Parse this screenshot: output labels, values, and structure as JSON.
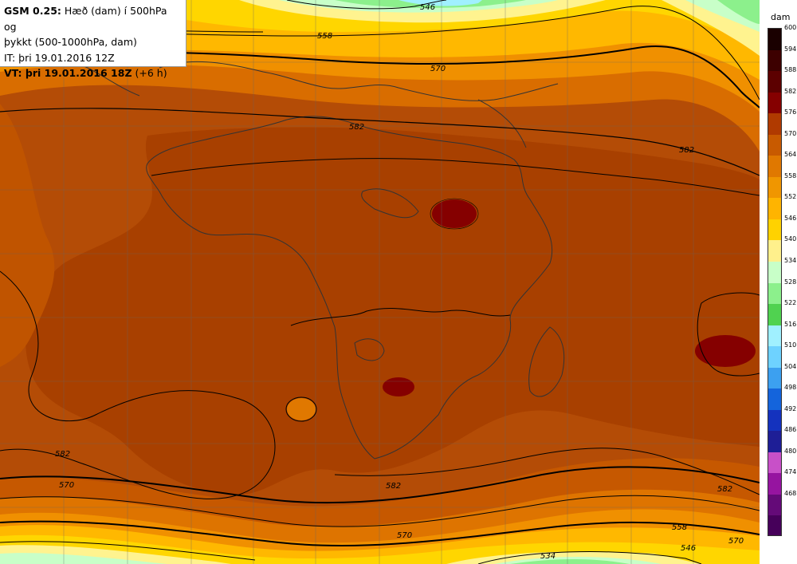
{
  "info": {
    "model_prefix": "GSM 0.25:",
    "line1_rest": "Hæð (dam) í 500hPa og",
    "line2": "þykkt (500-1000hPa, dam)",
    "it": "IT: þri 19.01.2016 12Z",
    "vt_bold": "VT: þri 19.01.2016 18Z",
    "vt_suffix": "(+6 h)"
  },
  "legend": {
    "unit": "dam",
    "ticks": [
      "600",
      "594",
      "588",
      "582",
      "576",
      "570",
      "564",
      "558",
      "552",
      "546",
      "540",
      "534",
      "528",
      "522",
      "516",
      "510",
      "504",
      "498",
      "492",
      "486",
      "480",
      "474",
      "468"
    ],
    "colors": [
      "#1a0000",
      "#3d0000",
      "#5c0000",
      "#850000",
      "#b03a00",
      "#c85a00",
      "#e07800",
      "#f09600",
      "#ffb400",
      "#ffd200",
      "#fff08c",
      "#c8ffc8",
      "#8cf08c",
      "#50d250",
      "#a0f0ff",
      "#6ed2ff",
      "#3ca0f0",
      "#1464dc",
      "#1432be",
      "#1e1e96",
      "#c850c8",
      "#9614a0",
      "#640a78",
      "#46005a"
    ]
  },
  "contour_labels": [
    "546",
    "558",
    "570",
    "582",
    "582",
    "582",
    "570",
    "582",
    "558",
    "534",
    "570",
    "546",
    "582",
    "570"
  ]
}
